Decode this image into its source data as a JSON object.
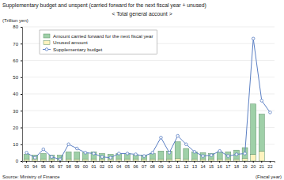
{
  "chart_data": {
    "type": "bar",
    "title": "Supplementary budget and unspent (carried forward for the next fiscal year + unused)",
    "subtitle": "< Total general account >",
    "y_label": "(Trillion yen)",
    "x_label": "(Fiscal year)",
    "source": "Source: Ministry of Finance",
    "categories": [
      "93",
      "94",
      "95",
      "96",
      "97",
      "98",
      "99",
      "00",
      "01",
      "02",
      "03",
      "04",
      "05",
      "06",
      "07",
      "08",
      "09",
      "10",
      "11",
      "12",
      "13",
      "14",
      "15",
      "16",
      "17",
      "18",
      "19",
      "20",
      "21",
      "22"
    ],
    "stacked": true,
    "grid": true,
    "legend": "upper left",
    "ylim": [
      0,
      80
    ],
    "yticks": [
      0,
      10,
      20,
      30,
      40,
      50,
      60,
      70,
      80
    ],
    "series": [
      {
        "name": "Amount carried forward for the next fiscal year",
        "type": "bar",
        "color": "#9fd0a8",
        "values": [
          3,
          2.5,
          3.5,
          2.5,
          2.5,
          4.5,
          4.5,
          4,
          4.5,
          3.5,
          3,
          3.5,
          3.5,
          2.5,
          2.5,
          3.5,
          5,
          5,
          10,
          6.5,
          4.5,
          4,
          3.5,
          4.5,
          4.5,
          5.5,
          6.5,
          30,
          22,
          null
        ]
      },
      {
        "name": "Unused amount",
        "type": "bar",
        "color": "#fff3bf",
        "values": [
          1,
          1,
          1,
          1,
          1,
          1,
          1,
          1,
          1,
          1,
          1,
          1,
          1,
          1,
          1,
          1,
          1,
          1,
          1.5,
          1,
          1,
          1,
          1,
          1,
          1,
          1,
          1.5,
          4,
          6,
          null
        ]
      },
      {
        "name": "Supplementary budget",
        "type": "line",
        "color": "#5b7fc4",
        "marker": "circle",
        "values": [
          5,
          2,
          7,
          2.5,
          1,
          10,
          7.5,
          5,
          4.5,
          2.5,
          2,
          4.5,
          4.5,
          4,
          3,
          5,
          14,
          5,
          15,
          10,
          5.5,
          3,
          3.5,
          6,
          3,
          4,
          4.5,
          73,
          36,
          29
        ]
      }
    ]
  }
}
